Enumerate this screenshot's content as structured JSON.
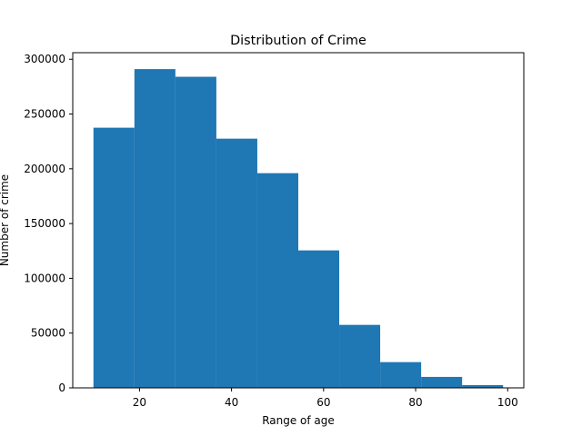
{
  "chart_data": {
    "type": "bar",
    "title": "Distribution of Crime",
    "xlabel": "Range of age",
    "ylabel": "Number of crime",
    "bin_edges": [
      10.0,
      18.9,
      27.8,
      36.7,
      45.6,
      54.5,
      63.4,
      72.3,
      81.2,
      90.1,
      99.0
    ],
    "values": [
      237500,
      291000,
      284000,
      227500,
      196000,
      125500,
      57500,
      23500,
      10000,
      2500
    ],
    "xlim": [
      5.5,
      103.5
    ],
    "ylim": [
      0,
      306000
    ],
    "xticks": [
      20,
      40,
      60,
      80,
      100
    ],
    "yticks": [
      0,
      50000,
      100000,
      150000,
      200000,
      250000,
      300000
    ],
    "grid": false,
    "bar_color": "#1f77b4"
  }
}
